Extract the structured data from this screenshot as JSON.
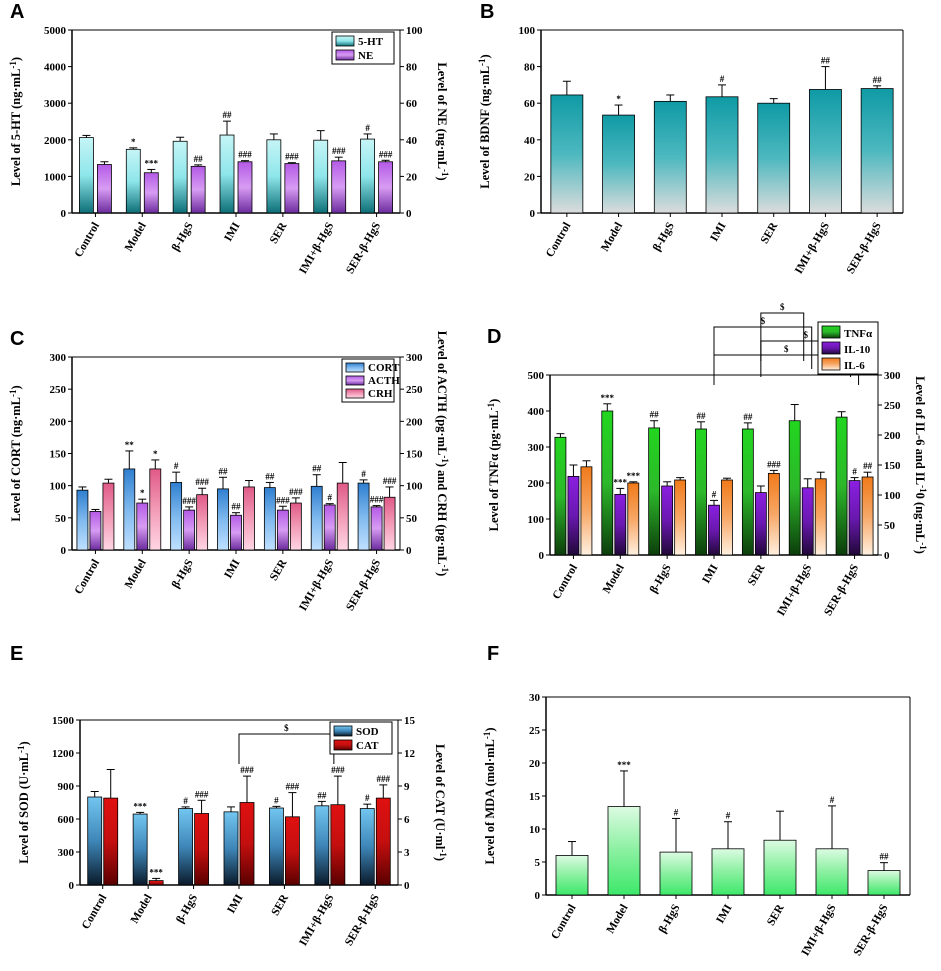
{
  "colors": {
    "teal": "#0f9aa5",
    "teal_dark": "#0d6f77",
    "cyan_light": "#c6f5f7",
    "violet": "#b45ae6",
    "violet_dark": "#6c2c9e",
    "blue": "#2f7fd0",
    "blue_light": "#bfe0ff",
    "pink": "#e05a87",
    "pink_light": "#ffd6e4",
    "green": "#22d61f",
    "green_light": "#c9f7c8",
    "purple": "#8b1fe0",
    "orange": "#f07a1a",
    "red": "#e01010",
    "sky": "#72c6f0",
    "mint": "#3de86a",
    "mint_light": "#dcfbe2"
  },
  "chart_data": [
    {
      "panel": "A",
      "type": "bar",
      "categories": [
        "Control",
        "Model",
        "β-HgS",
        "IMI",
        "SER",
        "IMI+β-HgS",
        "SER-β-HgS"
      ],
      "series": [
        {
          "name": "5-HT",
          "axis": "left",
          "values": [
            2060,
            1740,
            1960,
            2130,
            2000,
            1990,
            2020
          ],
          "errors": [
            60,
            40,
            110,
            380,
            160,
            260,
            140
          ],
          "marks": [
            "",
            "*",
            "",
            "##",
            "",
            "",
            "#"
          ],
          "color_key": "teal"
        },
        {
          "name": "NE",
          "axis": "right",
          "values": [
            26.5,
            22.0,
            25.5,
            28.0,
            27.0,
            28.5,
            28.0
          ],
          "errors": [
            1.5,
            1.8,
            0.8,
            0.6,
            0.5,
            2.0,
            0.8
          ],
          "marks": [
            "",
            "***",
            "##",
            "###",
            "###",
            "###",
            "###"
          ],
          "color_key": "violet"
        }
      ],
      "ylabel": "Level of 5-HT  (ng·mL-1)",
      "ylabel_right": "Level of NE  (ng·mL-1)",
      "ylim": [
        0,
        5000
      ],
      "yticks": [
        0,
        1000,
        2000,
        3000,
        4000,
        5000
      ],
      "ylim_right": [
        0,
        100
      ],
      "yticks_right": [
        0,
        20,
        40,
        60,
        80,
        100
      ],
      "legend_position": "top-right"
    },
    {
      "panel": "B",
      "type": "bar",
      "categories": [
        "Control",
        "Model",
        "β-HgS",
        "IMI",
        "SER",
        "IMI+β-HgS",
        "SER-β-HgS"
      ],
      "series": [
        {
          "name": "BDNF",
          "axis": "left",
          "values": [
            64.5,
            53.5,
            61.0,
            63.5,
            60.0,
            67.5,
            68.0
          ],
          "errors": [
            7.5,
            5.5,
            3.5,
            6.5,
            2.5,
            12.5,
            1.5
          ],
          "marks": [
            "",
            "*",
            "",
            "#",
            "",
            "##",
            "##"
          ],
          "color_key": "teal"
        }
      ],
      "ylabel": "Level of BDNF (ng·mL-1)",
      "ylim": [
        0,
        100
      ],
      "yticks": [
        0,
        20,
        40,
        60,
        80,
        100
      ]
    },
    {
      "panel": "C",
      "type": "bar",
      "categories": [
        "Control",
        "Model",
        "β-HgS",
        "IMI",
        "SER",
        "IMI+β-HgS",
        "SER-β-HgS"
      ],
      "series": [
        {
          "name": "CORT",
          "axis": "left",
          "values": [
            93,
            126,
            105,
            95,
            97,
            99,
            104
          ],
          "errors": [
            5,
            28,
            16,
            18,
            8,
            18,
            5
          ],
          "marks": [
            "",
            "**",
            "#",
            "##",
            "##",
            "##",
            "#"
          ],
          "color_key": "blue"
        },
        {
          "name": "ACTH",
          "axis": "right",
          "values": [
            60,
            73,
            62,
            54,
            62,
            70,
            67
          ],
          "errors": [
            3,
            6,
            5,
            4,
            6,
            2,
            2
          ],
          "marks": [
            "",
            "*",
            "###",
            "##",
            "###",
            "#",
            "###"
          ],
          "color_key": "violet"
        },
        {
          "name": "CRH",
          "axis": "right",
          "values": [
            104,
            126,
            86,
            98,
            73,
            104,
            82
          ],
          "errors": [
            6,
            14,
            10,
            10,
            8,
            32,
            16
          ],
          "marks": [
            "",
            "*",
            "###",
            "",
            "###",
            "",
            "###"
          ],
          "color_key": "pink"
        }
      ],
      "ylabel": "Level of CORT (ng·mL-1)",
      "ylabel_right": "Level of ACTH (pg·mL-1) and CRH (pg·mL-1)",
      "ylim": [
        0,
        300
      ],
      "yticks": [
        0,
        50,
        100,
        150,
        200,
        250,
        300
      ],
      "ylim_right": [
        0,
        300
      ],
      "yticks_right": [
        0,
        50,
        100,
        150,
        200,
        250,
        300
      ],
      "legend_position": "top-right"
    },
    {
      "panel": "D",
      "type": "bar",
      "categories": [
        "Control",
        "Model",
        "β-HgS",
        "IMI",
        "SER",
        "IMI+β-HgS",
        "SER-β-HgS"
      ],
      "series": [
        {
          "name": "TNFα",
          "axis": "left",
          "values": [
            327,
            400,
            353,
            350,
            350,
            373,
            383
          ],
          "errors": [
            10,
            20,
            20,
            20,
            17,
            45,
            15
          ],
          "marks": [
            "",
            "***",
            "##",
            "##",
            "##",
            "",
            ""
          ],
          "color_key": "green"
        },
        {
          "name": "IL-10",
          "axis": "right",
          "values": [
            131,
            101,
            115,
            83,
            104,
            112,
            124
          ],
          "errors": [
            19,
            10,
            7,
            8,
            11,
            15,
            5
          ],
          "marks": [
            "",
            "***",
            "",
            "#",
            "",
            "",
            "#"
          ],
          "color_key": "purple"
        },
        {
          "name": "IL-6",
          "axis": "right",
          "values": [
            147,
            120,
            125,
            125,
            136,
            127,
            130
          ],
          "errors": [
            10,
            2,
            4,
            3,
            5,
            11,
            8
          ],
          "marks": [
            "",
            "***",
            "",
            "",
            "###",
            "",
            "##"
          ],
          "color_key": "orange"
        }
      ],
      "ylabel": "Level of TNFα (pg·mL-1)",
      "ylabel_right": "Level of IL-6 and IL-10 (ng·mL-1)",
      "ylim": [
        0,
        500
      ],
      "yticks": [
        0,
        100,
        200,
        300,
        400,
        500
      ],
      "ylim_right": [
        0,
        300
      ],
      "yticks_right": [
        0,
        50,
        100,
        150,
        200,
        250,
        300
      ],
      "brackets": [
        {
          "from": "IMI",
          "to": "SER-β-HgS",
          "label": "$"
        },
        {
          "from": "SER",
          "to": "SER-β-HgS",
          "label": "$"
        },
        {
          "from": "IMI",
          "to": "IMI+β-HgS",
          "label": "$"
        },
        {
          "from": "SER",
          "to": "IMI+β-HgS",
          "label": "$"
        }
      ],
      "legend_position": "top-left-outside"
    },
    {
      "panel": "E",
      "type": "bar",
      "categories": [
        "Control",
        "Model",
        "β-HgS",
        "IMI",
        "SER",
        "IMI+β-HgS",
        "SER-β-HgS"
      ],
      "series": [
        {
          "name": "SOD",
          "axis": "left",
          "values": [
            800,
            645,
            695,
            665,
            700,
            720,
            695
          ],
          "errors": [
            50,
            15,
            15,
            45,
            15,
            40,
            40
          ],
          "marks": [
            "",
            "***",
            "#",
            "",
            "#",
            "##",
            "#"
          ],
          "color_key": "sky"
        },
        {
          "name": "CAT",
          "axis": "right",
          "values": [
            7.9,
            0.4,
            6.5,
            7.5,
            6.2,
            7.3,
            7.9
          ],
          "errors": [
            2.6,
            0.2,
            1.2,
            2.4,
            2.2,
            2.6,
            1.2
          ],
          "marks": [
            "",
            "***",
            "###",
            "###",
            "###",
            "###",
            "###"
          ],
          "color_key": "red"
        }
      ],
      "ylabel": "Level of SOD (U·mL-1)",
      "ylabel_right": "Level of CAT (U·ml-1)",
      "ylim": [
        0,
        1500
      ],
      "yticks": [
        0,
        300,
        600,
        900,
        1200,
        1500
      ],
      "ylim_right": [
        0,
        15
      ],
      "yticks_right": [
        0,
        3,
        6,
        9,
        12,
        15
      ],
      "brackets": [
        {
          "from": "IMI",
          "to": "IMI+β-HgS",
          "label": "$"
        }
      ],
      "legend_position": "top-right"
    },
    {
      "panel": "F",
      "type": "bar",
      "categories": [
        "Control",
        "Model",
        "β-HgS",
        "IMI",
        "SER",
        "IMI+β-HgS",
        "SER-β-HgS"
      ],
      "series": [
        {
          "name": "MDA",
          "axis": "left",
          "values": [
            6.0,
            13.4,
            6.5,
            7.0,
            8.3,
            7.0,
            3.7
          ],
          "errors": [
            2.1,
            5.4,
            5.1,
            4.1,
            4.4,
            6.5,
            1.2
          ],
          "marks": [
            "",
            "***",
            "#",
            "#",
            "",
            "#",
            "##"
          ],
          "color_key": "mint"
        }
      ],
      "ylabel": "Level of MDA (mol·mL-1)",
      "ylim": [
        0,
        30
      ],
      "yticks": [
        0,
        5,
        10,
        15,
        20,
        25,
        30
      ]
    }
  ]
}
